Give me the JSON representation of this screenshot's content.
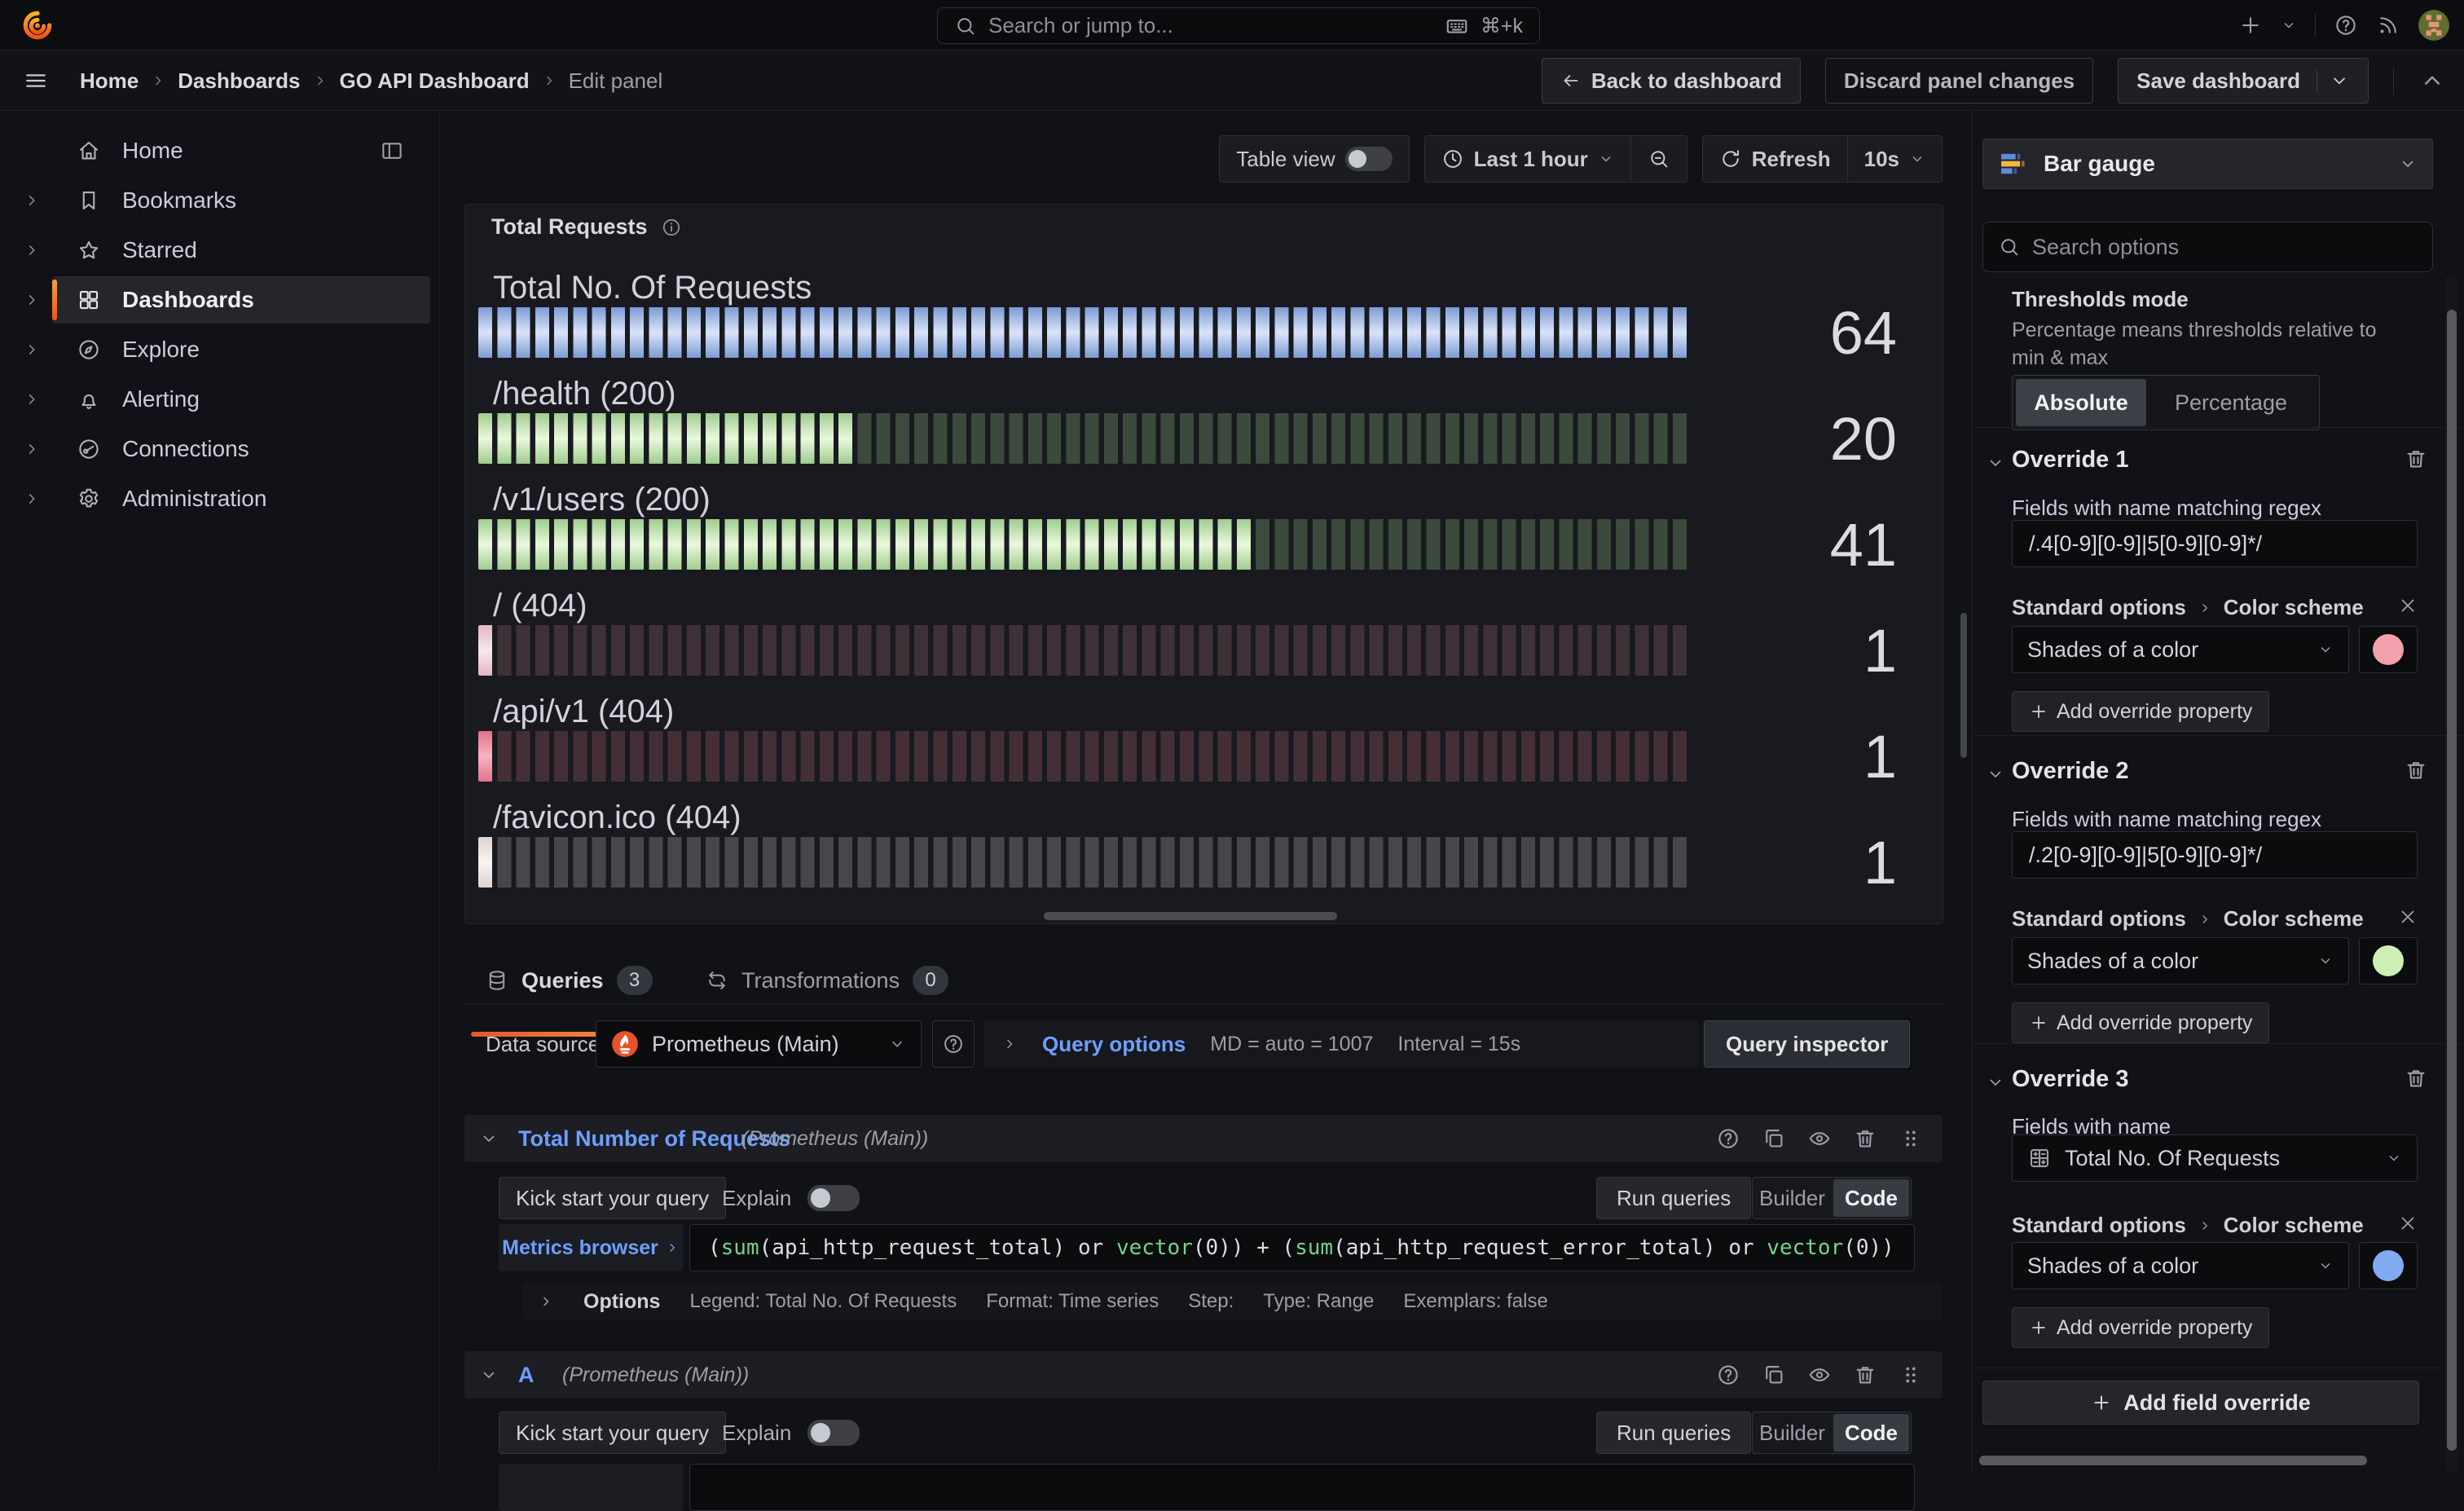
{
  "topbar": {
    "search_placeholder": "Search or jump to...",
    "search_shortcut": "⌘+k"
  },
  "breadcrumb": {
    "items": [
      "Home",
      "Dashboards",
      "GO API Dashboard",
      "Edit panel"
    ]
  },
  "header_actions": {
    "back": "Back to dashboard",
    "discard": "Discard panel changes",
    "save": "Save dashboard"
  },
  "sidebar": {
    "items": [
      {
        "key": "home",
        "label": "Home",
        "icon": "house-icon",
        "chevron": false,
        "active": false,
        "trailing": "panel-left-icon"
      },
      {
        "key": "bookmarks",
        "label": "Bookmarks",
        "icon": "bookmark-icon",
        "chevron": true,
        "active": false
      },
      {
        "key": "starred",
        "label": "Starred",
        "icon": "star-icon",
        "chevron": true,
        "active": false
      },
      {
        "key": "dashboards",
        "label": "Dashboards",
        "icon": "apps-icon",
        "chevron": true,
        "active": true
      },
      {
        "key": "explore",
        "label": "Explore",
        "icon": "compass-icon",
        "chevron": true,
        "active": false
      },
      {
        "key": "alerting",
        "label": "Alerting",
        "icon": "bell-icon",
        "chevron": true,
        "active": false
      },
      {
        "key": "connections",
        "label": "Connections",
        "icon": "plug-icon",
        "chevron": true,
        "active": false
      },
      {
        "key": "administration",
        "label": "Administration",
        "icon": "gear-icon",
        "chevron": true,
        "active": false
      }
    ]
  },
  "toolbar": {
    "table_view": "Table view",
    "time_range": "Last 1 hour",
    "refresh": "Refresh",
    "interval": "10s"
  },
  "panel": {
    "title": "Total Requests"
  },
  "chart_data": {
    "type": "bar",
    "subtype": "bar-gauge-lcd",
    "title": "Total Requests",
    "max": 64,
    "min": 0,
    "categories": [
      "Total No. Of Requests",
      "/health (200)",
      "/v1/users (200)",
      "/ (404)",
      "/api/v1 (404)",
      "/favicon.ico (404)"
    ],
    "values": [
      64,
      20,
      41,
      1,
      1,
      1
    ],
    "series": [
      {
        "label": "Total No. Of Requests",
        "value": 64,
        "fill_edge": "#7d9bd4",
        "fill_center": "#d9e4f8",
        "empty": "#2b3a52"
      },
      {
        "label": "/health (200)",
        "value": 20,
        "fill_edge": "#a0cb8f",
        "fill_center": "#e9f9dc",
        "empty": "#3b4a3d"
      },
      {
        "label": "/v1/users (200)",
        "value": 41,
        "fill_edge": "#a0cb8f",
        "fill_center": "#e9f9dc",
        "empty": "#3b4a3d"
      },
      {
        "label": "/ (404)",
        "value": 1,
        "fill_edge": "#e3b4c4",
        "fill_center": "#f7e9ed",
        "empty": "#3f3137"
      },
      {
        "label": "/api/v1 (404)",
        "value": 1,
        "fill_edge": "#e57189",
        "fill_center": "#f7b3c1",
        "empty": "#452f37"
      },
      {
        "label": "/favicon.ico (404)",
        "value": 1,
        "fill_edge": "#dfd2d2",
        "fill_center": "#faf3f0",
        "empty": "#49464b"
      }
    ]
  },
  "tabs": {
    "queries": {
      "label": "Queries",
      "count": "3"
    },
    "transformations": {
      "label": "Transformations",
      "count": "0"
    }
  },
  "datasource": {
    "label": "Data source",
    "value": "Prometheus (Main)",
    "options_label": "Query options",
    "maxdp": "MD = auto = 1007",
    "interval": "Interval = 15s",
    "inspector": "Query inspector"
  },
  "query_common": {
    "kick": "Kick start your query",
    "explain": "Explain",
    "run": "Run queries",
    "builder": "Builder",
    "code": "Code",
    "metrics_browser": "Metrics browser"
  },
  "queries": [
    {
      "name": "Total Number of Requests",
      "subtitle": "(Prometheus (Main))"
    },
    {
      "name": "A",
      "subtitle": "(Prometheus (Main))"
    }
  ],
  "expr_tokens": [
    {
      "text": "(",
      "type": "p"
    },
    {
      "text": "sum",
      "type": "f"
    },
    {
      "text": "(api_http_request_total) ",
      "type": "p"
    },
    {
      "text": "or ",
      "type": "p"
    },
    {
      "text": "vector",
      "type": "f"
    },
    {
      "text": "(0)) + (",
      "type": "p"
    },
    {
      "text": "sum",
      "type": "f"
    },
    {
      "text": "(api_http_request_error_total) ",
      "type": "p"
    },
    {
      "text": "or ",
      "type": "p"
    },
    {
      "text": "vector",
      "type": "f"
    },
    {
      "text": "(0))",
      "type": "p"
    }
  ],
  "query1_options": {
    "label": "Options",
    "meta": [
      "Legend: Total No. Of Requests",
      "Format: Time series",
      "Step:",
      "Type: Range",
      "Exemplars: false"
    ]
  },
  "options_pane": {
    "viz_label": "Bar gauge",
    "search_placeholder": "Search options",
    "thresholds": {
      "title": "Thresholds mode",
      "desc": "Percentage means thresholds relative to min & max",
      "absolute": "Absolute",
      "percentage": "Percentage"
    },
    "overrides": [
      {
        "title": "Override 1",
        "field_label": "Fields with name matching regex",
        "field_value": "/.4[0-9][0-9]|5[0-9][0-9]*/",
        "crumb_a": "Standard options",
        "crumb_b": "Color scheme",
        "scheme": "Shades of a color",
        "swatch": "#f3a1ad",
        "add_label": "Add override property"
      },
      {
        "title": "Override 2",
        "field_label": "Fields with name matching regex",
        "field_value": "/.2[0-9][0-9]|5[0-9][0-9]*/",
        "crumb_a": "Standard options",
        "crumb_b": "Color scheme",
        "scheme": "Shades of a color",
        "swatch": "#cdeeb5",
        "add_label": "Add override property"
      },
      {
        "title": "Override 3",
        "field_label": "Fields with name",
        "field_value": "Total No. Of Requests",
        "crumb_a": "Standard options",
        "crumb_b": "Color scheme",
        "scheme": "Shades of a color",
        "swatch": "#82aaf3",
        "add_label": "Add override property"
      }
    ],
    "add_field": "Add field override"
  }
}
